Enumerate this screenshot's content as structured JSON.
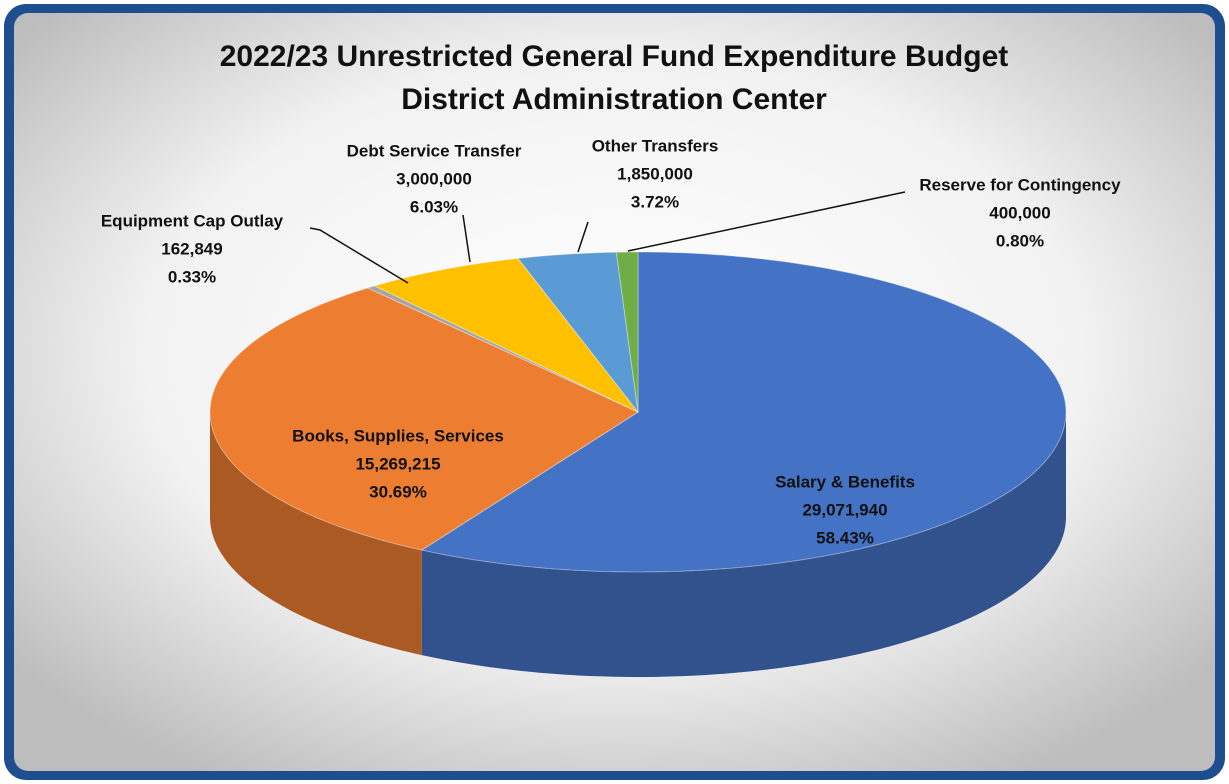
{
  "chart_data": {
    "type": "pie3d",
    "title": "2022/23 Unrestricted General Fund Expenditure Budget",
    "subtitle": "District Administration Center",
    "categories": [
      "Salary & Benefits",
      "Books, Supplies, Services",
      "Equipment Cap Outlay",
      "Debt Service Transfer",
      "Other Transfers",
      "Reserve for Contingency"
    ],
    "values": [
      29071940,
      15269215,
      162849,
      3000000,
      1850000,
      400000
    ],
    "value_labels": [
      "29,071,940",
      "15,269,215",
      "162,849",
      "3,000,000",
      "1,850,000",
      "400,000"
    ],
    "percentages": [
      58.43,
      30.69,
      0.33,
      6.03,
      3.72,
      0.8
    ],
    "percentage_labels": [
      "58.43%",
      "30.69%",
      "0.33%",
      "6.03%",
      "3.72%",
      "0.80%"
    ],
    "colors": [
      "#4472c4",
      "#ed7d31",
      "#a5a5a5",
      "#ffc000",
      "#5b9bd5",
      "#70ad47"
    ]
  }
}
